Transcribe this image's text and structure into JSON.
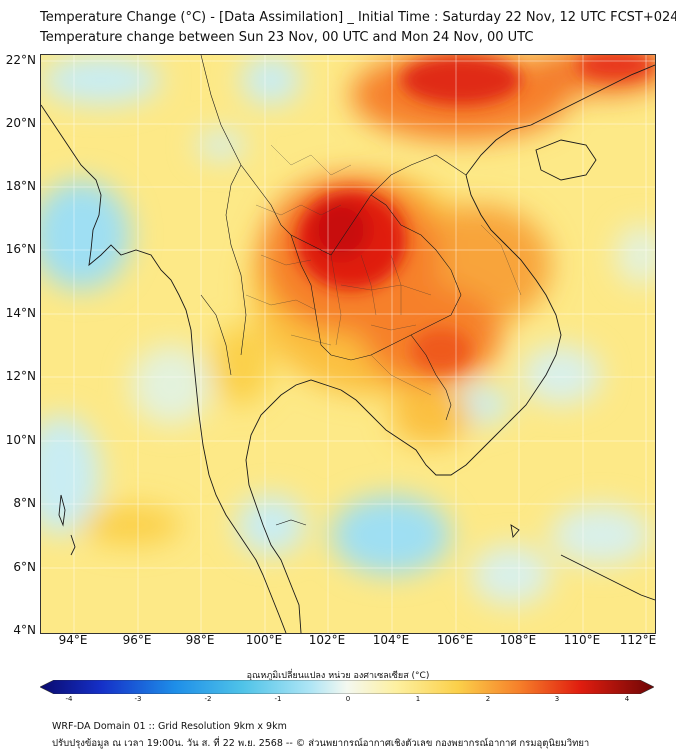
{
  "header": {
    "title": "Temperature Change (°C) - [Data Assimilation] _ Initial Time : Saturday 22 Nov, 12 UTC FCST+024",
    "subtitle": "Temperature change between Sun 23 Nov, 00 UTC and Mon 24 Nov, 00 UTC"
  },
  "map": {
    "lat_labels": [
      "22°N",
      "20°N",
      "18°N",
      "16°N",
      "14°N",
      "12°N",
      "10°N",
      "8°N",
      "6°N",
      "4°N"
    ],
    "lon_labels": [
      "94°E",
      "96°E",
      "98°E",
      "100°E",
      "102°E",
      "104°E",
      "106°E",
      "108°E",
      "110°E",
      "112°E"
    ],
    "lat_range": [
      4,
      22.2
    ],
    "lon_range": [
      93.1,
      112.4
    ]
  },
  "colorbar": {
    "title": "อุณหภูมิเปลี่ยนแปลง หน่วย องศาเซลเซียส (°C)",
    "ticks": [
      "-4",
      "-3",
      "-2",
      "-1",
      "0",
      "1",
      "2",
      "3",
      "4"
    ],
    "range": [
      -4,
      4
    ]
  },
  "footer": {
    "line1": "WRF-DA Domain 01 :: Grid Resolution 9km x 9km",
    "line2": "ปรับปรุงข้อมูล ณ เวลา 19:00น. วัน ส. ที่ 22 พ.ย. 2568 -- © ส่วนพยากรณ์อากาศเชิงตัวเลข กองพยากรณ์อากาศ กรมอุตุนิยมวิทยา"
  },
  "colors": {
    "warm_max": "#c8000a",
    "warm": "#f35a14",
    "mild": "#fde987",
    "cool": "#aee5f5",
    "cold": "#4fc3e8"
  }
}
